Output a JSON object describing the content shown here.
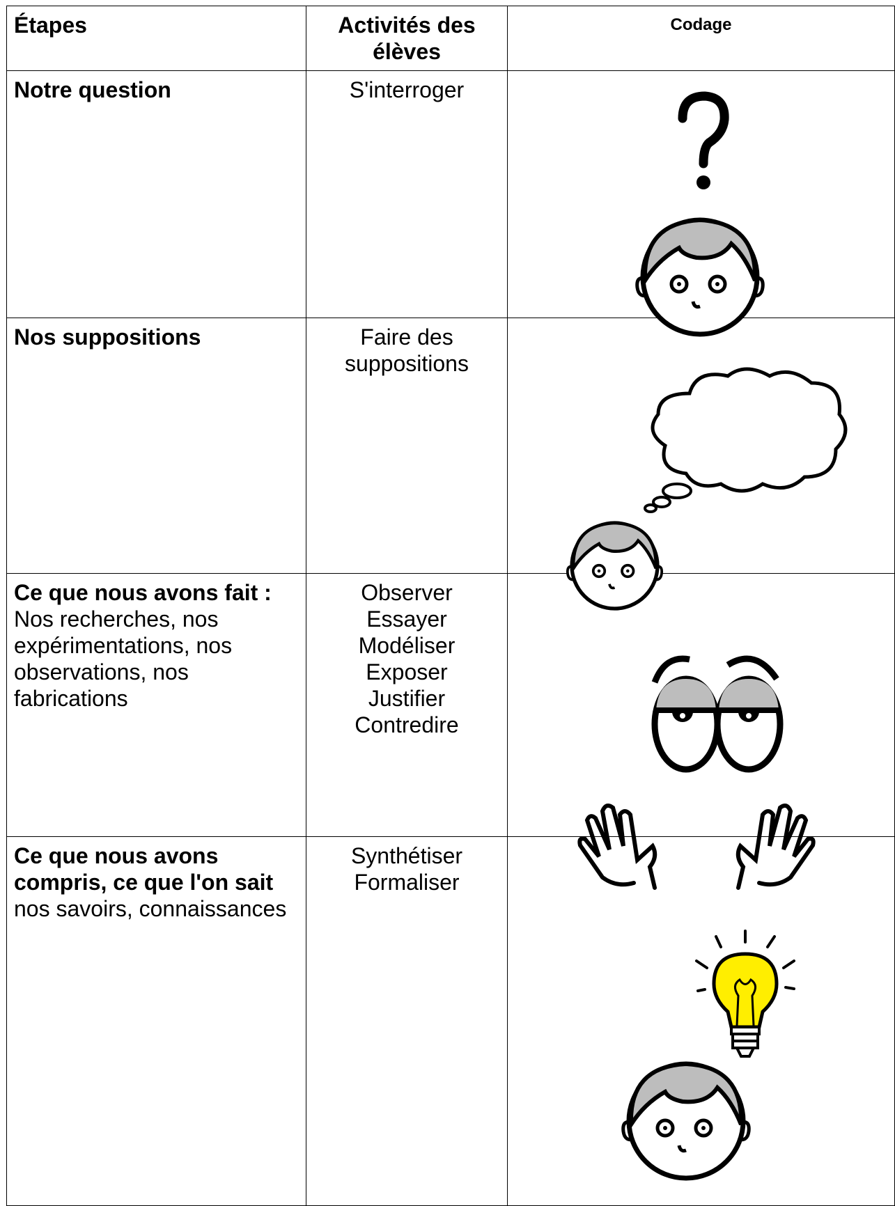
{
  "table": {
    "header": [
      "Étapes",
      "Activités des élèves",
      "Codage"
    ],
    "rows": [
      {
        "stage": {
          "title": "Notre question"
        },
        "activities": [
          "S'interroger"
        ]
      },
      {
        "stage": {
          "title": "Nos suppositions"
        },
        "activities": [
          "Faire des suppositions"
        ]
      },
      {
        "stage": {
          "title": "Ce que nous avons fait :",
          "detail": "Nos recherches, nos expérimentations, nos observations, nos fabrications"
        },
        "activities": [
          "Observer",
          "Essayer",
          "Modéliser",
          "Exposer",
          "Justifier",
          "Contredire"
        ]
      },
      {
        "stage": {
          "title": "Ce que nous avons compris, ce que l'on sait",
          "detail": "nos savoirs, connaissances"
        },
        "activities": [
          "Synthétiser",
          "Formaliser"
        ]
      }
    ]
  }
}
